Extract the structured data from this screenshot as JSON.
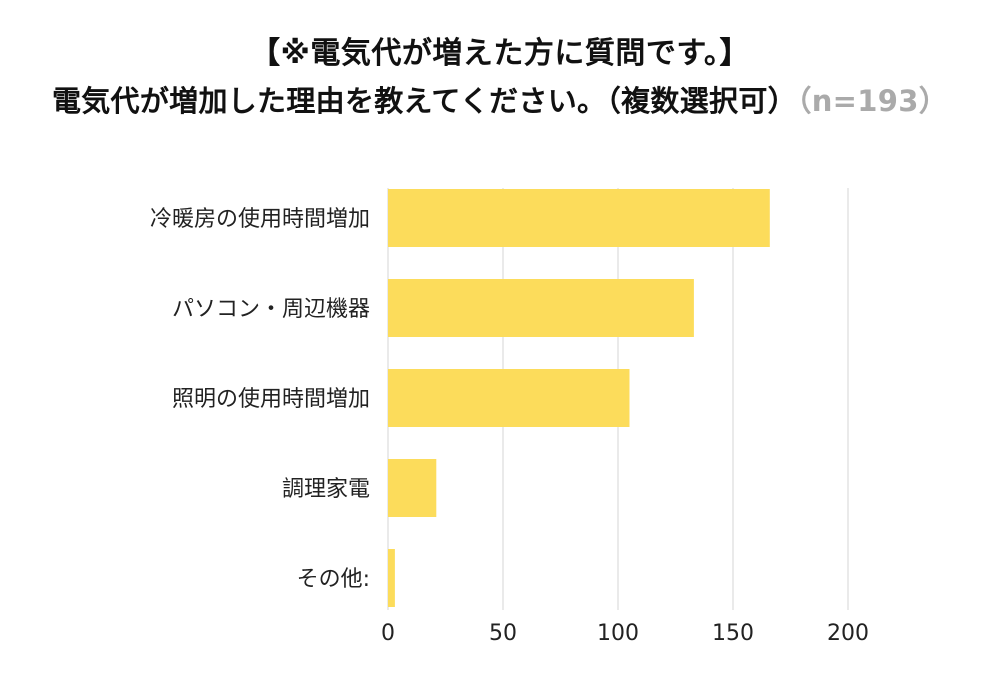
{
  "header": {
    "title_line1": "【※電気代が増えた方に質問です。】",
    "title_line2": "電気代が増加した理由を教えてください。（複数選択可）",
    "sample_size": "（n=193）"
  },
  "colors": {
    "bar": "#FCDC5B",
    "grid": "#d4d4d4",
    "title_muted": "#aaaaaa"
  },
  "chart_data": {
    "type": "bar",
    "orientation": "horizontal",
    "categories": [
      "冷暖房の使用時間増加",
      "パソコン・周辺機器",
      "照明の使用時間増加",
      "調理家電",
      "その他:"
    ],
    "values": [
      166,
      133,
      105,
      21,
      3
    ],
    "xlim": [
      0,
      200
    ],
    "xticks": [
      0,
      50,
      100,
      150,
      200
    ],
    "grid": true,
    "legend": "none"
  }
}
